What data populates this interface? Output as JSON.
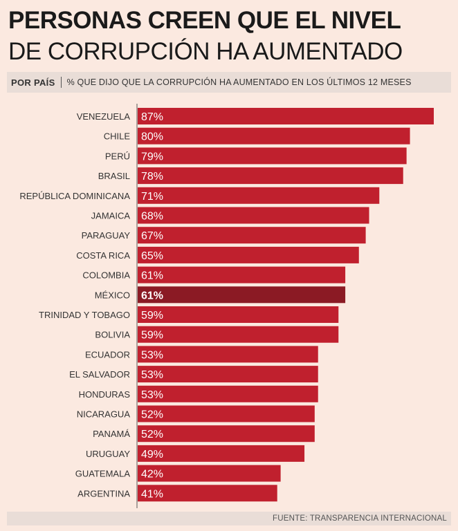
{
  "header": {
    "title_line1": "PERSONAS CREEN  QUE EL NIVEL",
    "title_line2": "DE CORRUPCIÓN HA AUMENTADO",
    "tag": "POR PAÍS",
    "description": "% QUE DIJO QUE LA CORRUPCIÓN HA AUMENTADO EN LOS ÚLTIMOS 12 MESES"
  },
  "footer": {
    "source": "FUENTE: TRANSPARENCIA  INTERNACIONAL"
  },
  "colors": {
    "bar": "#c0202e",
    "highlight": "#8b1a24",
    "background": "#fbe9e0",
    "label": "#333333"
  },
  "chart_data": {
    "type": "bar",
    "orientation": "horizontal",
    "title": "PERSONAS CREEN  QUE EL NIVEL DE CORRUPCIÓN HA AUMENTADO",
    "subtitle": "% QUE DIJO QUE LA CORRUPCIÓN HA AUMENTADO EN LOS ÚLTIMOS 12 MESES",
    "categories": [
      "VENEZUELA",
      "CHILE",
      "PERÚ",
      "BRASIL",
      "REPÚBLICA DOMINICANA",
      "JAMAICA",
      "PARAGUAY",
      "COSTA RICA",
      "COLOMBIA",
      "MÉXICO",
      "TRINIDAD Y TOBAGO",
      "BOLIVIA",
      "ECUADOR",
      "EL SALVADOR",
      "HONDURAS",
      "NICARAGUA",
      "PANAMÁ",
      "URUGUAY",
      "GUATEMALA",
      "ARGENTINA"
    ],
    "values": [
      87,
      80,
      79,
      78,
      71,
      68,
      67,
      65,
      61,
      61,
      59,
      59,
      53,
      53,
      53,
      52,
      52,
      49,
      42,
      41
    ],
    "labels": [
      "87%",
      "80%",
      "79%",
      "78%",
      "71%",
      "68%",
      "67%",
      "65%",
      "61%",
      "61%",
      "59%",
      "59%",
      "53%",
      "53%",
      "53%",
      "52%",
      "52%",
      "49%",
      "42%",
      "41%"
    ],
    "highlight": "MÉXICO",
    "xlim": [
      0,
      87
    ]
  }
}
